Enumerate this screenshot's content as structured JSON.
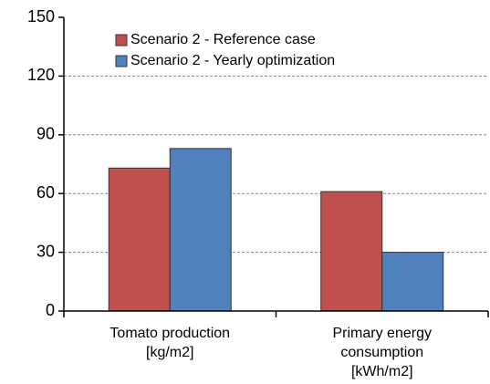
{
  "chart_data": {
    "type": "bar",
    "categories": [
      [
        "Tomato production",
        "[kg/m2]"
      ],
      [
        "Primary energy",
        "consumption",
        "[kWh/m2]"
      ]
    ],
    "series": [
      {
        "name": "Scenario 2 - Reference case",
        "color": "#c0504d",
        "values": [
          73,
          61
        ]
      },
      {
        "name": "Scenario 2 - Yearly optimization",
        "color": "#4f81bd",
        "values": [
          83,
          30
        ]
      }
    ],
    "ylim": [
      0,
      150
    ],
    "yticks": [
      0,
      30,
      60,
      90,
      120,
      150
    ],
    "grid": true,
    "legend": "upper left"
  }
}
